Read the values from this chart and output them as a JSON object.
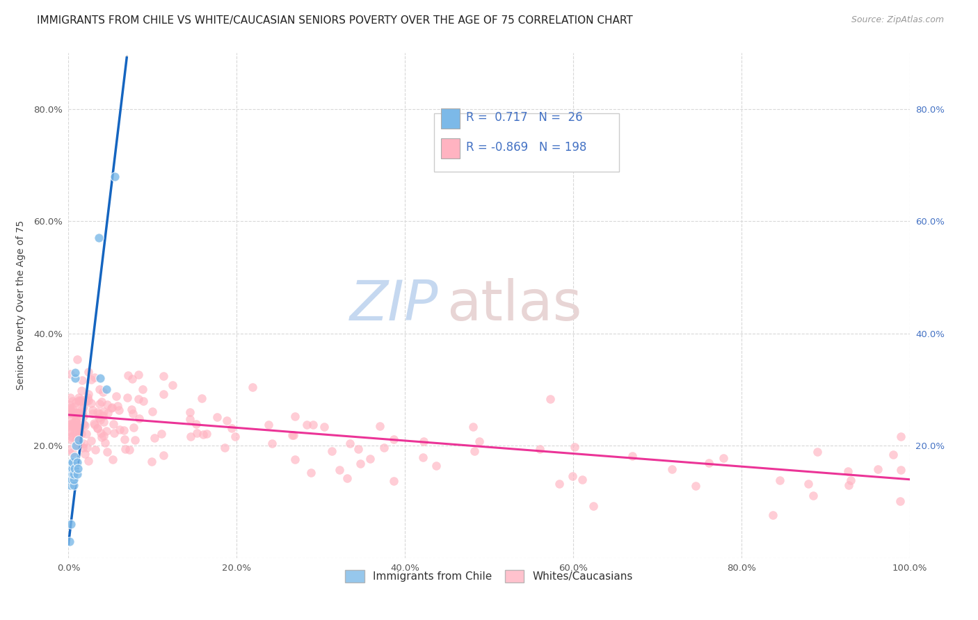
{
  "title": "IMMIGRANTS FROM CHILE VS WHITE/CAUCASIAN SENIORS POVERTY OVER THE AGE OF 75 CORRELATION CHART",
  "source": "Source: ZipAtlas.com",
  "ylabel": "Seniors Poverty Over the Age of 75",
  "r_chile": 0.717,
  "n_chile": 26,
  "r_white": -0.869,
  "n_white": 198,
  "xlim": [
    0,
    1.0
  ],
  "ylim": [
    0,
    0.9
  ],
  "xticks": [
    0,
    0.2,
    0.4,
    0.6,
    0.8,
    1.0
  ],
  "yticks": [
    0,
    0.2,
    0.4,
    0.6,
    0.8
  ],
  "xticklabels": [
    "0.0%",
    "20.0%",
    "40.0%",
    "60.0%",
    "80.0%",
    "100.0%"
  ],
  "yticklabels_left": [
    "",
    "20.0%",
    "40.0%",
    "60.0%",
    "80.0%"
  ],
  "yticklabels_right": [
    "",
    "20.0%",
    "40.0%",
    "60.0%",
    "80.0%"
  ],
  "chile_color": "#7cb9e8",
  "white_color": "#ffb3c1",
  "chile_line_color": "#1565c0",
  "white_line_color": "#e91e8c",
  "background_color": "#ffffff",
  "grid_color": "#d8d8d8",
  "title_fontsize": 11,
  "axis_fontsize": 10,
  "tick_fontsize": 9.5,
  "right_tick_color": "#4472c4",
  "left_tick_color": "#555555",
  "legend_label_chile": "Immigrants from Chile",
  "legend_label_white": "Whites/Caucasians",
  "chile_x": [
    0.001,
    0.002,
    0.002,
    0.003,
    0.003,
    0.004,
    0.004,
    0.005,
    0.005,
    0.005,
    0.006,
    0.006,
    0.006,
    0.007,
    0.007,
    0.008,
    0.008,
    0.009,
    0.01,
    0.01,
    0.011,
    0.012,
    0.036,
    0.038,
    0.045,
    0.055
  ],
  "chile_y": [
    0.03,
    0.13,
    0.15,
    0.16,
    0.06,
    0.14,
    0.17,
    0.15,
    0.16,
    0.17,
    0.13,
    0.14,
    0.15,
    0.16,
    0.18,
    0.32,
    0.33,
    0.2,
    0.15,
    0.17,
    0.16,
    0.21,
    0.57,
    0.32,
    0.3,
    0.68
  ],
  "white_intercept": 0.255,
  "white_slope": -0.115,
  "white_noise_std": 0.038,
  "chile_intercept": 0.025,
  "chile_slope": 12.5,
  "dash_color": "#bbbbbb",
  "watermark_zip_color": "#c5d8f0",
  "watermark_atlas_color": "#e8d5d5"
}
